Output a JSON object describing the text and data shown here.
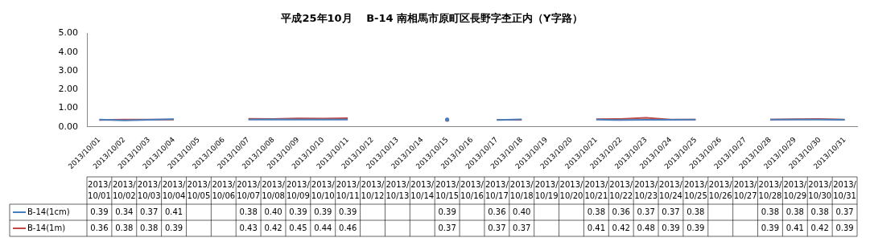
{
  "chart_data": {
    "type": "line",
    "title": "平成25年10月　 B-14 南相馬市原町区長野字杢正内（Y字路）",
    "categories": [
      "2013/10/01",
      "2013/10/02",
      "2013/10/03",
      "2013/10/04",
      "2013/10/05",
      "2013/10/06",
      "2013/10/07",
      "2013/10/08",
      "2013/10/09",
      "2013/10/10",
      "2013/10/11",
      "2013/10/12",
      "2013/10/13",
      "2013/10/14",
      "2013/10/15",
      "2013/10/16",
      "2013/10/17",
      "2013/10/18",
      "2013/10/19",
      "2013/10/20",
      "2013/10/21",
      "2013/10/22",
      "2013/10/23",
      "2013/10/24",
      "2013/10/25",
      "2013/10/26",
      "2013/10/27",
      "2013/10/28",
      "2013/10/29",
      "2013/10/30",
      "2013/10/31"
    ],
    "series": [
      {
        "name": "B-14(1cm)",
        "color": "#4a7ebb",
        "values": [
          0.39,
          0.34,
          0.37,
          0.41,
          null,
          null,
          0.38,
          0.4,
          0.39,
          0.39,
          0.39,
          null,
          null,
          null,
          0.39,
          null,
          0.36,
          0.4,
          null,
          null,
          0.38,
          0.36,
          0.37,
          0.37,
          0.38,
          null,
          null,
          0.38,
          0.38,
          0.38,
          0.37
        ],
        "value_labels": [
          "0.39",
          "0.34",
          "0.37",
          "0.41",
          null,
          null,
          "0.38",
          "0.40",
          "0.39",
          "0.39",
          "0.39",
          null,
          null,
          null,
          "0.39",
          null,
          "0.36",
          "0.40",
          null,
          null,
          "0.38",
          "0.36",
          "0.37",
          "0.37",
          "0.38",
          null,
          null,
          "0.38",
          "0.38",
          "0.38",
          "0.37"
        ]
      },
      {
        "name": "B-14(1m)",
        "color": "#be4b48",
        "values": [
          0.36,
          0.38,
          0.38,
          0.39,
          null,
          null,
          0.43,
          0.42,
          0.45,
          0.44,
          0.46,
          null,
          null,
          null,
          0.37,
          null,
          0.37,
          0.37,
          null,
          null,
          0.41,
          0.42,
          0.48,
          0.39,
          0.39,
          null,
          null,
          0.39,
          0.41,
          0.42,
          0.39
        ],
        "value_labels": [
          "0.36",
          "0.38",
          "0.38",
          "0.39",
          null,
          null,
          "0.43",
          "0.42",
          "0.45",
          "0.44",
          "0.46",
          null,
          null,
          null,
          "0.37",
          null,
          "0.37",
          "0.37",
          null,
          null,
          "0.41",
          "0.42",
          "0.48",
          "0.39",
          "0.39",
          null,
          null,
          "0.39",
          "0.41",
          "0.42",
          "0.39"
        ]
      }
    ],
    "ylim": [
      0,
      5
    ],
    "yticks": [
      {
        "value": 0,
        "label": "0.00"
      },
      {
        "value": 1,
        "label": "1.00"
      },
      {
        "value": 2,
        "label": "2.00"
      },
      {
        "value": 3,
        "label": "3.00"
      },
      {
        "value": 4,
        "label": "4.00"
      },
      {
        "value": 5,
        "label": "5.00"
      }
    ],
    "legend": "bottom",
    "marker": "none",
    "line_style": "solid"
  }
}
